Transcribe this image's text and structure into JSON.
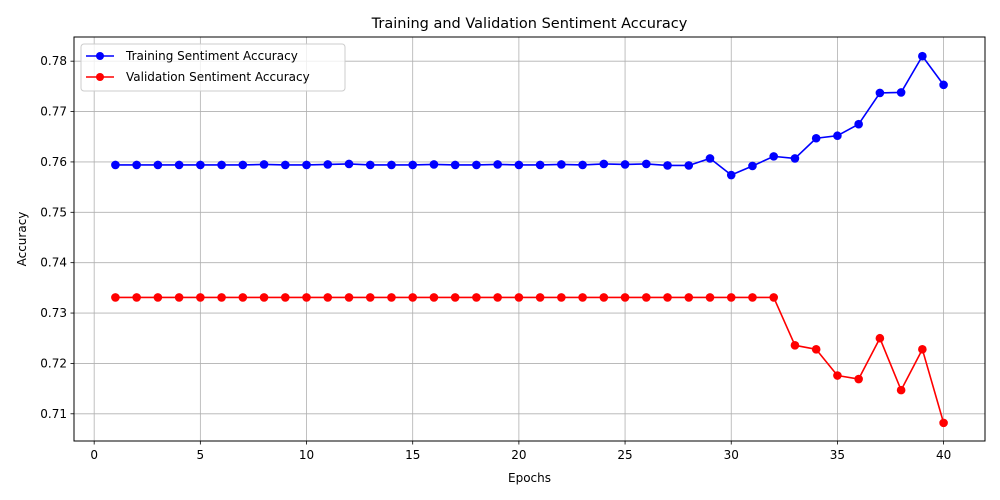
{
  "chart_data": {
    "type": "line",
    "title": "Training and Validation Sentiment Accuracy",
    "xlabel": "Epochs",
    "ylabel": "Accuracy",
    "xlim": [
      -0.95,
      41.95
    ],
    "ylim": [
      0.7046,
      0.7848
    ],
    "xticks": [
      0,
      5,
      10,
      15,
      20,
      25,
      30,
      35,
      40
    ],
    "xtick_labels": [
      "0",
      "5",
      "10",
      "15",
      "20",
      "25",
      "30",
      "35",
      "40"
    ],
    "yticks": [
      0.71,
      0.72,
      0.73,
      0.74,
      0.75,
      0.76,
      0.77,
      0.78
    ],
    "ytick_labels": [
      "0.71",
      "0.72",
      "0.73",
      "0.74",
      "0.75",
      "0.76",
      "0.77",
      "0.78"
    ],
    "grid": true,
    "legend_position": "top-left",
    "x": [
      1,
      2,
      3,
      4,
      5,
      6,
      7,
      8,
      9,
      10,
      11,
      12,
      13,
      14,
      15,
      16,
      17,
      18,
      19,
      20,
      21,
      22,
      23,
      24,
      25,
      26,
      27,
      28,
      29,
      30,
      31,
      32,
      33,
      34,
      35,
      36,
      37,
      38,
      39,
      40
    ],
    "series": [
      {
        "name": "Training Sentiment Accuracy",
        "color": "#0000ff",
        "marker": "circle",
        "values": [
          0.7594,
          0.7594,
          0.7594,
          0.7594,
          0.7594,
          0.7594,
          0.7594,
          0.7595,
          0.7594,
          0.7594,
          0.7595,
          0.7596,
          0.7594,
          0.7594,
          0.7594,
          0.7595,
          0.7594,
          0.7594,
          0.7595,
          0.7594,
          0.7594,
          0.7595,
          0.7594,
          0.7596,
          0.7595,
          0.7596,
          0.7593,
          0.7593,
          0.7607,
          0.7574,
          0.7592,
          0.7611,
          0.7607,
          0.7647,
          0.7652,
          0.7675,
          0.7737,
          0.7738,
          0.781,
          0.7753
        ]
      },
      {
        "name": "Validation Sentiment Accuracy",
        "color": "#ff0000",
        "marker": "circle",
        "values": [
          0.7331,
          0.7331,
          0.7331,
          0.7331,
          0.7331,
          0.7331,
          0.7331,
          0.7331,
          0.7331,
          0.7331,
          0.7331,
          0.7331,
          0.7331,
          0.7331,
          0.7331,
          0.7331,
          0.7331,
          0.7331,
          0.7331,
          0.7331,
          0.7331,
          0.7331,
          0.7331,
          0.7331,
          0.7331,
          0.7331,
          0.7331,
          0.7331,
          0.7331,
          0.7331,
          0.7331,
          0.7331,
          0.7236,
          0.7228,
          0.7176,
          0.7169,
          0.725,
          0.7147,
          0.7228,
          0.7082
        ]
      }
    ]
  }
}
